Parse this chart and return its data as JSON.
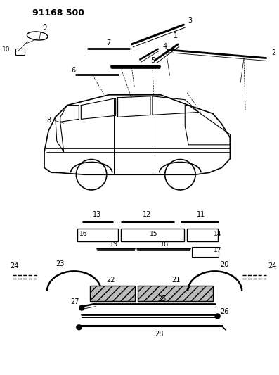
{
  "title": "91168 500",
  "bg_color": "#ffffff",
  "line_color": "#000000",
  "fig_width": 3.97,
  "fig_height": 5.33,
  "dpi": 100
}
